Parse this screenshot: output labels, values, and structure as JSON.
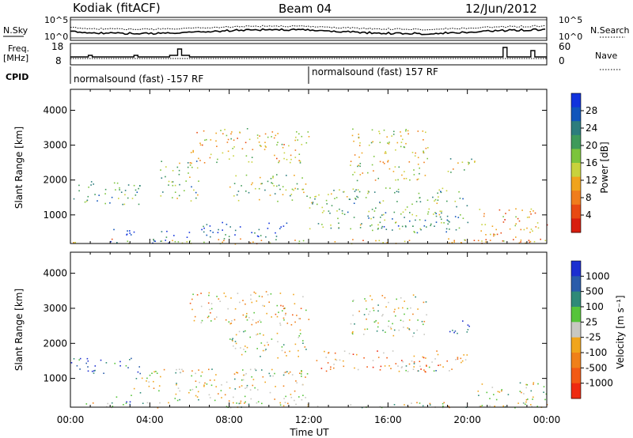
{
  "header": {
    "station": "Kodiak (fitACF)",
    "beam": "Beam 04",
    "date": "12/Jun/2012"
  },
  "status_panels": {
    "nsky_label": "N.Sky",
    "nsky_ticks": [
      "10^5",
      "10^0"
    ],
    "nsearch_label": "N.Search",
    "nsearch_ticks": [
      "10^5",
      "10^0"
    ],
    "freq_label_line1": "Freq.",
    "freq_label_line2": "[MHz]",
    "freq_ticks": [
      "18",
      "8"
    ],
    "nave_label": "Nave",
    "nave_ticks": [
      "60",
      "0"
    ],
    "cpid_label": "CPID",
    "cpid_segments": [
      "normalsound (fast) -157 RF",
      "normalsound (fast) 157 RF"
    ],
    "cpid_switch_time_h": 12
  },
  "chart_data": [
    {
      "type": "heatmap",
      "panel": "power",
      "ylabel": "Slant Range [km]",
      "xlabel": "",
      "x_domain_h": [
        0,
        24
      ],
      "ylim": [
        180,
        4600
      ],
      "yticks": [
        1000,
        2000,
        3000,
        4000
      ],
      "colorbar": {
        "label": "Power [dB]",
        "ticks": [
          "28",
          "24",
          "20",
          "16",
          "12",
          "8",
          "4"
        ],
        "colors": [
          "#1133dd",
          "#1155bb",
          "#2d7d7d",
          "#3f9a5a",
          "#7cc43c",
          "#c8d23c",
          "#f0a31c",
          "#f07d1c",
          "#e84a12",
          "#d81e0e"
        ]
      },
      "echo_regions": [
        {
          "t0": 0.0,
          "t1": 24.0,
          "r0": 180,
          "r1": 330,
          "level": 0.35
        },
        {
          "t0": 0.0,
          "t1": 3.5,
          "r0": 1300,
          "r1": 2000,
          "level": 0.65
        },
        {
          "t0": 2.0,
          "t1": 3.2,
          "r0": 200,
          "r1": 700,
          "level": 0.95
        },
        {
          "t0": 4.0,
          "t1": 6.0,
          "r0": 200,
          "r1": 600,
          "level": 0.9
        },
        {
          "t0": 4.5,
          "t1": 6.5,
          "r0": 1400,
          "r1": 2600,
          "level": 0.6
        },
        {
          "t0": 6.0,
          "t1": 12.0,
          "r0": 2500,
          "r1": 3500,
          "level": 0.4
        },
        {
          "t0": 6.5,
          "t1": 11.0,
          "r0": 300,
          "r1": 800,
          "level": 0.85
        },
        {
          "t0": 8.0,
          "t1": 12.0,
          "r0": 1400,
          "r1": 2200,
          "level": 0.55
        },
        {
          "t0": 12.0,
          "t1": 20.0,
          "r0": 600,
          "r1": 1800,
          "level": 0.6
        },
        {
          "t0": 14.0,
          "t1": 18.0,
          "r0": 2000,
          "r1": 3500,
          "level": 0.45
        },
        {
          "t0": 15.0,
          "t1": 19.5,
          "r0": 500,
          "r1": 900,
          "level": 0.75
        },
        {
          "t0": 19.0,
          "t1": 20.5,
          "r0": 2200,
          "r1": 2700,
          "level": 0.5
        },
        {
          "t0": 20.5,
          "t1": 24.0,
          "r0": 200,
          "r1": 1200,
          "level": 0.3
        }
      ]
    },
    {
      "type": "heatmap",
      "panel": "velocity",
      "ylabel": "Slant Range [km]",
      "xlabel": "Time UT",
      "x_domain_h": [
        0,
        24
      ],
      "xticks": [
        "00:00",
        "04:00",
        "08:00",
        "12:00",
        "16:00",
        "20:00",
        "00:00"
      ],
      "ylim": [
        180,
        4600
      ],
      "yticks": [
        1000,
        2000,
        3000,
        4000
      ],
      "colorbar": {
        "label": "Velocity [m s⁻¹]",
        "ticks": [
          "1000",
          "500",
          "100",
          "25",
          "-25",
          "-100",
          "-500",
          "-1000"
        ],
        "colors": [
          "#1c2fd0",
          "#2a5caa",
          "#2f8a78",
          "#56c43a",
          "#c8c8c2",
          "#f0a51c",
          "#f08019",
          "#f25a14",
          "#ee2a10"
        ]
      },
      "echo_regions": [
        {
          "t0": 0.0,
          "t1": 24.0,
          "r0": 180,
          "r1": 330,
          "level": 0.5
        },
        {
          "t0": 0.0,
          "t1": 3.5,
          "r0": 1100,
          "r1": 1600,
          "level": 0.85
        },
        {
          "t0": 2.0,
          "t1": 3.0,
          "r0": 200,
          "r1": 500,
          "level": 0.7
        },
        {
          "t0": 3.0,
          "t1": 12.0,
          "r0": 300,
          "r1": 1300,
          "level": 0.5
        },
        {
          "t0": 6.0,
          "t1": 12.0,
          "r0": 2500,
          "r1": 3500,
          "level": 0.4
        },
        {
          "t0": 8.0,
          "t1": 12.0,
          "r0": 1600,
          "r1": 2400,
          "level": 0.5
        },
        {
          "t0": 12.0,
          "t1": 20.0,
          "r0": 1200,
          "r1": 1800,
          "level": 0.3
        },
        {
          "t0": 14.0,
          "t1": 18.0,
          "r0": 2200,
          "r1": 3400,
          "level": 0.5
        },
        {
          "t0": 16.5,
          "t1": 18.5,
          "r0": 1200,
          "r1": 1500,
          "level": 0.7
        },
        {
          "t0": 19.0,
          "t1": 20.5,
          "r0": 2300,
          "r1": 2700,
          "level": 0.85
        },
        {
          "t0": 20.5,
          "t1": 24.0,
          "r0": 200,
          "r1": 900,
          "level": 0.5
        }
      ]
    }
  ]
}
